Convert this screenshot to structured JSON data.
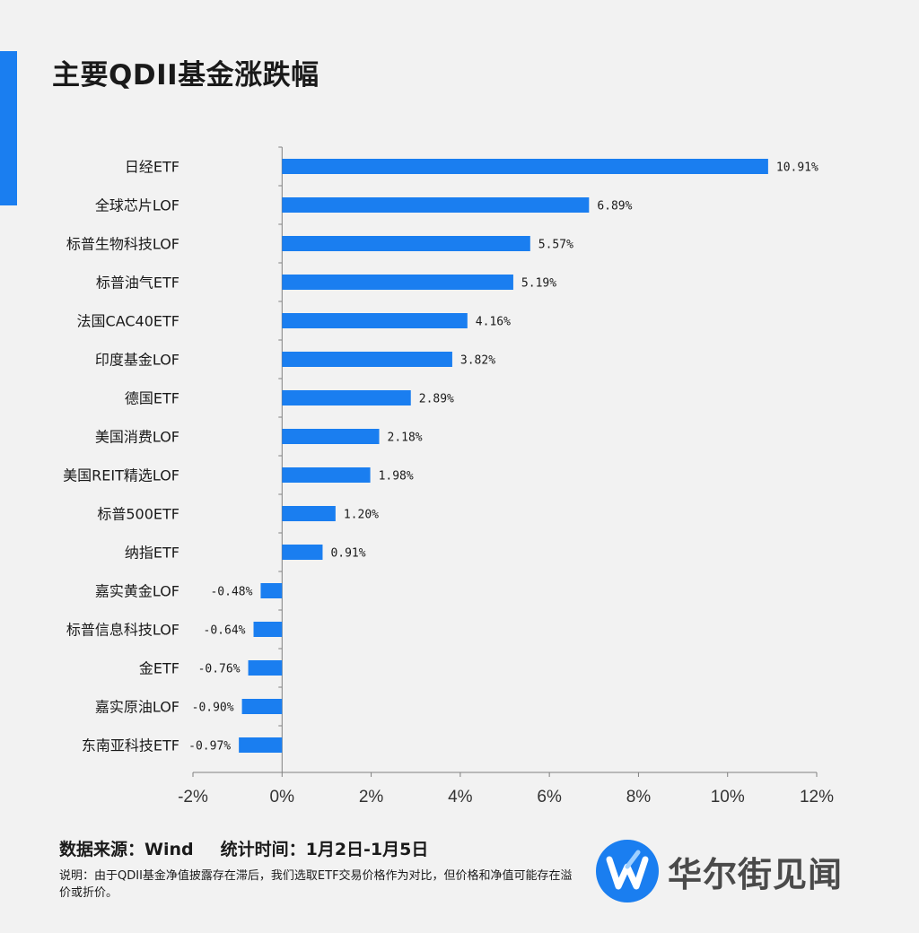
{
  "title": "主要QDII基金涨跌幅",
  "colors": {
    "accent": "#1a7ef0",
    "bar": "#1a7ef0",
    "axis": "#808080"
  },
  "chart_data": {
    "type": "bar",
    "orientation": "horizontal",
    "title": "主要QDII基金涨跌幅",
    "categories": [
      "日经ETF",
      "全球芯片LOF",
      "标普生物科技LOF",
      "标普油气ETF",
      "法国CAC40ETF",
      "印度基金LOF",
      "德国ETF",
      "美国消费LOF",
      "美国REIT精选LOF",
      "标普500ETF",
      "纳指ETF",
      "嘉实黄金LOF",
      "标普信息科技LOF",
      "金ETF",
      "嘉实原油LOF",
      "东南亚科技ETF"
    ],
    "values": [
      10.91,
      6.89,
      5.57,
      5.19,
      4.16,
      3.82,
      2.89,
      2.18,
      1.98,
      1.2,
      0.91,
      -0.48,
      -0.64,
      -0.76,
      -0.9,
      -0.97
    ],
    "value_labels": [
      "10.91%",
      "6.89%",
      "5.57%",
      "5.19%",
      "4.16%",
      "3.82%",
      "2.89%",
      "2.18%",
      "1.98%",
      "1.20%",
      "0.91%",
      "-0.48%",
      "-0.64%",
      "-0.76%",
      "-0.90%",
      "-0.97%"
    ],
    "xlim": [
      -2,
      12
    ],
    "xticks": [
      -2,
      0,
      2,
      4,
      6,
      8,
      10,
      12
    ],
    "xtick_labels": [
      "-2%",
      "0%",
      "2%",
      "4%",
      "6%",
      "8%",
      "10%",
      "12%"
    ],
    "xlabel": "",
    "ylabel": ""
  },
  "footer": {
    "source": "数据来源：Wind",
    "period": "统计时间：1月2日-1月5日",
    "note": "说明：由于QDII基金净值披露存在滞后，我们选取ETF交易价格作为对比，但价格和净值可能存在溢价或折价。"
  },
  "logo": {
    "text": "华尔街见闻",
    "icon": "wallstreetcn-logo-icon"
  }
}
